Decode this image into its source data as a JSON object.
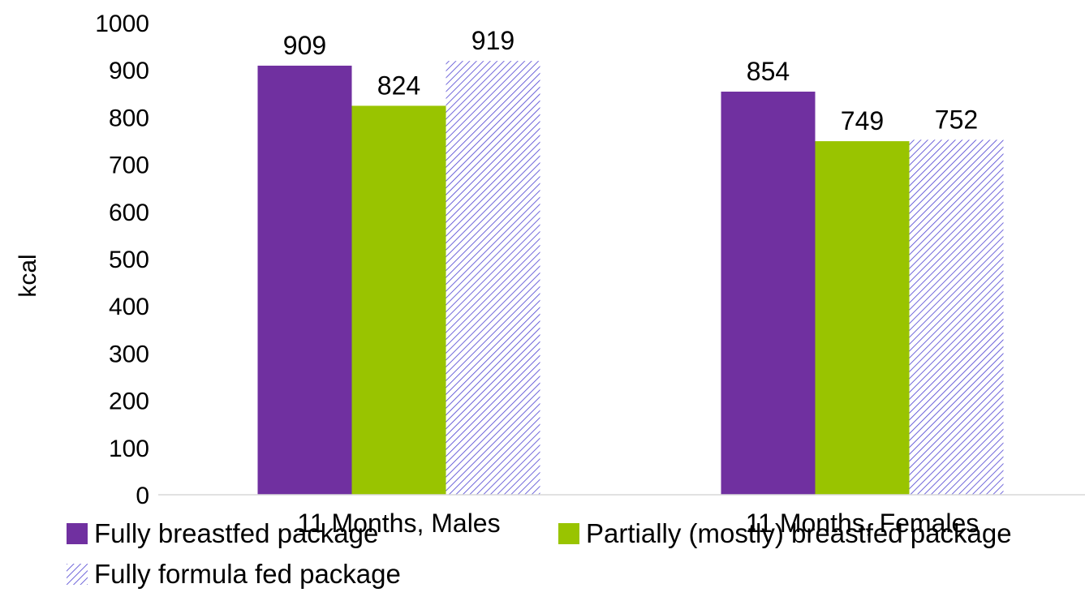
{
  "chart_data": {
    "type": "bar",
    "title": "",
    "xlabel": "",
    "ylabel": "kcal",
    "ylim": [
      0,
      1000
    ],
    "yticks": [
      "0",
      "100",
      "200",
      "300",
      "400",
      "500",
      "600",
      "700",
      "800",
      "900",
      "1000"
    ],
    "categories": [
      "11 Months, Males",
      "11 Months, Females"
    ],
    "grid": false,
    "legend_position": "bottom",
    "series": [
      {
        "name": "Fully breastfed package",
        "values": [
          909,
          854
        ],
        "data_labels": [
          "909",
          "854"
        ],
        "color": "#7030A0",
        "fill": "solid"
      },
      {
        "name": "Partially (mostly) breastfed package",
        "values": [
          824,
          749
        ],
        "data_labels": [
          "824",
          "749"
        ],
        "color": "#99C400",
        "fill": "solid"
      },
      {
        "name": "Fully formula fed package",
        "values": [
          919,
          752
        ],
        "data_labels": [
          "919",
          "752"
        ],
        "color": "#4B3FD1",
        "fill": "diagonal-hatch"
      }
    ]
  }
}
